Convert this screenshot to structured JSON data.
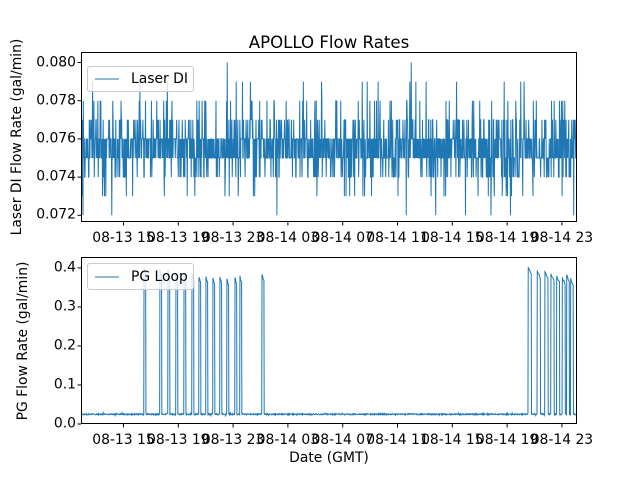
{
  "figure": {
    "title": "APOLLO Flow Rates",
    "xlabel": "Date (GMT)",
    "background_color": "#ffffff",
    "line_color": "#1f77b4",
    "x_tick_labels": [
      "08-13 15",
      "08-13 19",
      "08-13 23",
      "08-14 03",
      "08-14 07",
      "08-14 11",
      "08-14 15",
      "08-14 19",
      "08-14 23"
    ],
    "x_tick_hours_since_0813_1200_gmt": [
      3,
      7,
      11,
      15,
      19,
      23,
      27,
      31,
      35
    ],
    "xlim_hours": [
      -0.1,
      36.1
    ]
  },
  "chart_data": [
    {
      "type": "line",
      "subplot": "top",
      "title": "APOLLO Flow Rates",
      "legend_label": "Laser DI",
      "legend_position": "upper left",
      "line_color": "#1f77b4",
      "ylabel": "Laser DI Flow Rate (gal/min)",
      "y_tick_labels": [
        "0.080",
        "0.078",
        "0.076",
        "0.074",
        "0.072"
      ],
      "yticks": [
        0.08,
        0.078,
        0.076,
        0.074,
        0.072
      ],
      "ylim": [
        0.07165,
        0.08055
      ],
      "xlim_hours": [
        -0.1,
        36.1
      ],
      "x_tick_labels": [
        "08-13 15",
        "08-13 19",
        "08-13 23",
        "08-14 03",
        "08-14 07",
        "08-14 11",
        "08-14 15",
        "08-14 19",
        "08-14 23"
      ],
      "grid": false,
      "signal": {
        "kind": "quantized_noise_line",
        "description": "Rapidly oscillating quantized flow rate; dense band between 0.075 and 0.076 gal/min, frequent excursions to 0.074/0.077, common 0.073/0.078, occasional 0.079, rare dips to 0.072, single maximum 0.080 near 08-14 12:00 GMT",
        "levels": [
          0.072,
          0.073,
          0.074,
          0.075,
          0.076,
          0.077,
          0.078,
          0.079,
          0.08
        ],
        "level_weights": [
          0.004,
          0.03,
          0.105,
          0.341,
          0.341,
          0.112,
          0.052,
          0.0142,
          0.0008
        ],
        "samples": 1500,
        "min_value": 0.072,
        "max_value": 0.08,
        "max_time_hours": 24.0
      }
    },
    {
      "type": "line",
      "subplot": "bottom",
      "legend_label": "PG Loop",
      "legend_position": "upper left",
      "line_color": "#1f77b4",
      "ylabel": "PG Flow Rate (gal/min)",
      "xlabel": "Date (GMT)",
      "y_tick_labels": [
        "0.4",
        "0.3",
        "0.2",
        "0.1",
        "0.0"
      ],
      "yticks": [
        0.4,
        0.3,
        0.2,
        0.1,
        0.0
      ],
      "ylim": [
        0.0,
        0.428
      ],
      "xlim_hours": [
        -0.1,
        36.1
      ],
      "x_tick_labels": [
        "08-13 15",
        "08-13 19",
        "08-13 23",
        "08-14 03",
        "08-14 07",
        "08-14 11",
        "08-14 15",
        "08-14 19",
        "08-14 23"
      ],
      "grid": false,
      "baseline_value": 0.025,
      "baseline_noise": 0.002,
      "spike_description": "Flat ~0.025 gal/min baseline with narrow spikes to ~0.37-0.40: a cluster of 13 spikes from ~08-13 16:30 to 08-13 23:30, one isolated spike ~08-14 01:00, and a cluster of 8 spikes from ~08-14 20:30 to 08-14 23:40",
      "spikes": [
        {
          "t_hours": 4.5,
          "peak": 0.4,
          "width_hours": 0.12
        },
        {
          "t_hours": 5.66,
          "peak": 0.397,
          "width_hours": 0.12
        },
        {
          "t_hours": 6.25,
          "peak": 0.393,
          "width_hours": 0.12
        },
        {
          "t_hours": 6.83,
          "peak": 0.382,
          "width_hours": 0.12
        },
        {
          "t_hours": 7.42,
          "peak": 0.379,
          "width_hours": 0.12
        },
        {
          "t_hours": 8.0,
          "peak": 0.384,
          "width_hours": 0.12
        },
        {
          "t_hours": 8.51,
          "peak": 0.376,
          "width_hours": 0.12
        },
        {
          "t_hours": 9.02,
          "peak": 0.378,
          "width_hours": 0.12
        },
        {
          "t_hours": 9.53,
          "peak": 0.374,
          "width_hours": 0.12
        },
        {
          "t_hours": 10.04,
          "peak": 0.377,
          "width_hours": 0.12
        },
        {
          "t_hours": 10.55,
          "peak": 0.372,
          "width_hours": 0.12
        },
        {
          "t_hours": 11.14,
          "peak": 0.375,
          "width_hours": 0.12
        },
        {
          "t_hours": 11.5,
          "peak": 0.38,
          "width_hours": 0.12
        },
        {
          "t_hours": 13.11,
          "peak": 0.383,
          "width_hours": 0.14
        },
        {
          "t_hours": 32.54,
          "peak": 0.402,
          "width_hours": 0.22
        },
        {
          "t_hours": 33.2,
          "peak": 0.393,
          "width_hours": 0.22
        },
        {
          "t_hours": 33.76,
          "peak": 0.39,
          "width_hours": 0.22
        },
        {
          "t_hours": 34.2,
          "peak": 0.385,
          "width_hours": 0.22
        },
        {
          "t_hours": 34.62,
          "peak": 0.38,
          "width_hours": 0.2
        },
        {
          "t_hours": 35.03,
          "peak": 0.376,
          "width_hours": 0.2
        },
        {
          "t_hours": 35.35,
          "peak": 0.381,
          "width_hours": 0.18
        },
        {
          "t_hours": 35.64,
          "peak": 0.374,
          "width_hours": 0.18
        }
      ]
    }
  ]
}
